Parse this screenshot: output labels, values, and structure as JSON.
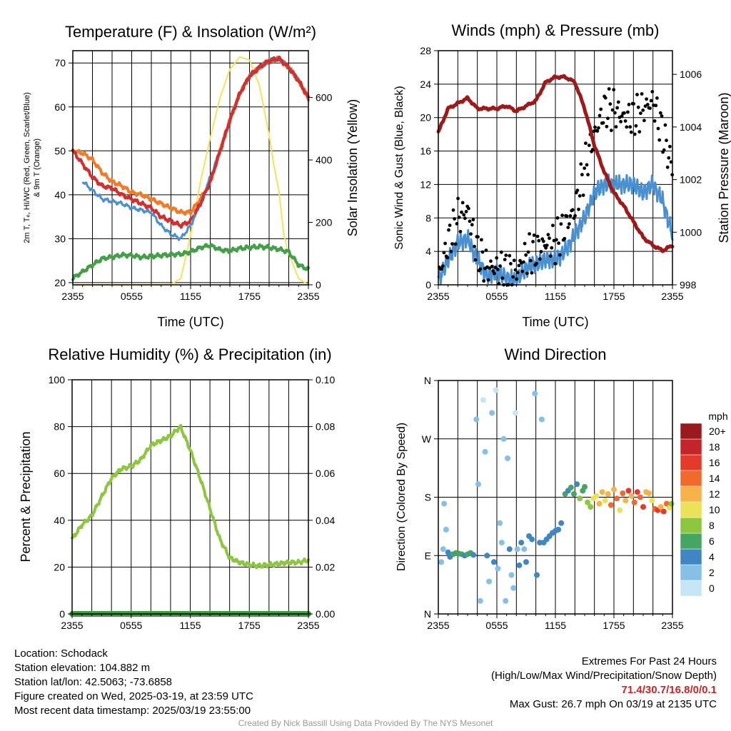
{
  "temp_panel": {
    "title": "Temperature (F) & Insolation (W/m²)",
    "ylabel_line1": "2m T, Tₑ, HI/WC (Red, Green, Scarlet/Blue)",
    "ylabel_line2": "& 9m T (Orange)",
    "ylabel2": "Solar Insolation (Yellow)",
    "xlabel": "Time (UTC)"
  },
  "wind_panel": {
    "title": "Winds (mph) & Pressure (mb)",
    "ylabel": "Sonic Wind & Gust (Blue, Black)",
    "ylabel2": "Station Pressure (Maroon)",
    "xlabel": "Time (UTC)"
  },
  "rh_panel": {
    "title": "Relative Humidity (%) & Precipitation (in)",
    "ylabel": "Percent & Precipitation"
  },
  "dir_panel": {
    "title": "Wind Direction",
    "ylabel": "Direction (Colored By Speed)",
    "colorbar_title": "mph"
  },
  "footer": {
    "location": "Location: Schodack",
    "elevation": "Station elevation: 104.882 m",
    "latlon": "Station lat/lon: 42.5063; -73.6858",
    "created": "Figure created on Wed, 2025-03-19, at 23:59 UTC",
    "recent": "Most recent data timestamp: 2025/03/19 23:55:00",
    "extremes_title": "Extremes For Past 24 Hours",
    "extremes_sub": "(High/Low/Max Wind/Precipitation/Snow Depth)",
    "extremes_values": "71.4/30.7/16.8/0/0.1",
    "max_gust": "Max Gust: 26.7 mph On 03/19 at 2135 UTC",
    "credit": "Created By Nick Bassill Using Data Provided By The NYS Mesonet"
  },
  "colors": {
    "temp": "#d32f2f",
    "dewpoint": "#43a047",
    "temp9m": "#f07c2a",
    "heatindex": "#4a90d0",
    "solar": "#f8e25c",
    "wind": "#4a90d0",
    "gust": "#000000",
    "pressure": "#9e1a1a",
    "rh": "#8dc63f",
    "precip": "#3e9a3e"
  },
  "chart_data": [
    {
      "type": "line",
      "title": "Temperature (F) & Insolation (W/m²)",
      "xlabel": "Time (UTC)",
      "ylabel": "2m T, Tₑ, HI/WC (Red, Green, Scarlet/Blue) & 9m T (Orange)",
      "ylabel2": "Solar Insolation (Yellow)",
      "x_ticks": [
        "2355",
        "0555",
        "1155",
        "1755",
        "2355"
      ],
      "y_ticks": [
        20,
        30,
        40,
        50,
        60,
        70
      ],
      "y2_ticks": [
        0,
        200,
        400,
        600
      ],
      "ylim": [
        19.5,
        72.8
      ],
      "y2lim": [
        0,
        750
      ],
      "x_hours": [
        0,
        1,
        2,
        3,
        4,
        5,
        6,
        7,
        8,
        9,
        10,
        11,
        12,
        13,
        14,
        15,
        16,
        17,
        18,
        19,
        20,
        21,
        22,
        23,
        24
      ],
      "series": [
        {
          "color": "red",
          "values": [
            50,
            47,
            44,
            42,
            41.5,
            40,
            39,
            38,
            37,
            35,
            34,
            33,
            34,
            38,
            43,
            50,
            57,
            63,
            67,
            69,
            70.5,
            71,
            69,
            66,
            62
          ]
        },
        {
          "color": "orange",
          "values": [
            50,
            49.5,
            48,
            45,
            43,
            42,
            40.5,
            40,
            39,
            38,
            37,
            36,
            36,
            39,
            43,
            50,
            57,
            63,
            67,
            69,
            70.5,
            71,
            69,
            66,
            62
          ]
        },
        {
          "color": "green",
          "values": [
            21,
            22.5,
            24,
            25.5,
            25.8,
            26.3,
            26.2,
            25.8,
            26,
            26.2,
            26.4,
            26.5,
            27,
            28,
            28.5,
            27.5,
            27.2,
            27.8,
            28,
            28.2,
            28,
            27.6,
            27,
            24,
            23
          ]
        },
        {
          "color": "scarlet/blue",
          "values": [
            null,
            43,
            41,
            39,
            38.5,
            38,
            37,
            36.5,
            36,
            33,
            31,
            30,
            33,
            38,
            44,
            50,
            57,
            63,
            67,
            69,
            70.5,
            71,
            69,
            66,
            62
          ]
        }
      ],
      "solar_series": {
        "color": "yellow",
        "x_hours": [
          0,
          9,
          10,
          11,
          12,
          13,
          14,
          15,
          16,
          17,
          18,
          19,
          20,
          20.5,
          21,
          21.5,
          22,
          23,
          24
        ],
        "values": [
          0,
          0,
          2,
          20,
          160,
          330,
          470,
          600,
          690,
          730,
          720,
          640,
          480,
          380,
          300,
          160,
          100,
          20,
          0
        ]
      }
    },
    {
      "type": "line",
      "title": "Winds (mph) & Pressure (mb)",
      "xlabel": "Time (UTC)",
      "ylabel": "Sonic Wind & Gust (Blue, Black)",
      "ylabel2": "Station Pressure (Maroon)",
      "x_ticks": [
        "2355",
        "0555",
        "1155",
        "1755",
        "2355"
      ],
      "y_ticks": [
        0,
        4,
        8,
        12,
        16,
        20,
        24,
        28
      ],
      "y2_ticks": [
        998,
        1000,
        1002,
        1004,
        1006
      ],
      "ylim": [
        0,
        28
      ],
      "y2lim": [
        998,
        1006.9
      ],
      "x_hours": [
        0,
        1,
        2,
        3,
        4,
        5,
        6,
        7,
        8,
        9,
        10,
        11,
        12,
        13,
        14,
        15,
        16,
        17,
        18,
        19,
        20,
        21,
        22,
        23,
        24
      ],
      "series": [
        {
          "name": "Sonic Wind",
          "color": "blue",
          "values": [
            0.5,
            3,
            5,
            5.5,
            3,
            1,
            1.5,
            0.8,
            0.5,
            2,
            2.5,
            3,
            3,
            4,
            6,
            8,
            11,
            12,
            12,
            12,
            12,
            11,
            12,
            10,
            6
          ]
        },
        {
          "name": "Gust",
          "color": "black",
          "values": [
            1,
            5,
            8,
            9,
            4,
            2,
            2,
            1.5,
            1.5,
            3.5,
            4,
            5,
            5,
            7,
            9,
            14,
            18,
            21,
            21,
            20,
            20,
            21,
            22,
            18,
            14
          ]
        },
        {
          "name": "Station Pressure",
          "color": "maroon",
          "values": [
            1003.8,
            1004.7,
            1004.9,
            1005.1,
            1004.7,
            1004.7,
            1004.7,
            1004.8,
            1004.6,
            1004.8,
            1005,
            1005.7,
            1005.9,
            1005.9,
            1005.7,
            1004.7,
            1003.3,
            1002.3,
            1001.5,
            1001,
            1000.4,
            999.8,
            999.5,
            999.3,
            999.5
          ]
        }
      ]
    },
    {
      "type": "line",
      "title": "Relative Humidity (%) & Precipitation (in)",
      "ylabel": "Percent & Precipitation",
      "x_ticks": [
        "2355",
        "0555",
        "1155",
        "1755",
        "2355"
      ],
      "y_ticks": [
        0,
        20,
        40,
        60,
        80,
        100
      ],
      "y2_ticks": [
        "0.00",
        "0.02",
        "0.04",
        "0.06",
        "0.08",
        "0.10"
      ],
      "ylim": [
        0,
        100
      ],
      "y2lim": [
        0,
        0.1
      ],
      "x_hours": [
        0,
        1,
        2,
        3,
        4,
        5,
        6,
        7,
        8,
        9,
        10,
        11,
        12,
        13,
        14,
        15,
        16,
        17,
        18,
        19,
        20,
        21,
        22,
        23,
        24
      ],
      "series": [
        {
          "name": "Relative Humidity",
          "color": "light green",
          "values": [
            32,
            38,
            42,
            50,
            58,
            62,
            63,
            66,
            72,
            74,
            76,
            80,
            70,
            58,
            45,
            32,
            24,
            22,
            21,
            20.5,
            21,
            21.5,
            22,
            22,
            23
          ]
        },
        {
          "name": "Precipitation",
          "color": "green",
          "values": [
            0,
            0,
            0,
            0,
            0,
            0,
            0,
            0,
            0,
            0,
            0,
            0,
            0,
            0,
            0,
            0,
            0,
            0,
            0,
            0,
            0,
            0,
            0,
            0,
            0
          ]
        }
      ]
    },
    {
      "type": "scatter",
      "title": "Wind Direction",
      "ylabel": "Direction (Colored By Speed)",
      "x_ticks": [
        "2355",
        "0555",
        "1155",
        "1755",
        "2355"
      ],
      "y_ticks": [
        "N",
        "E",
        "S",
        "W",
        "N"
      ],
      "ylim": [
        0,
        360
      ],
      "colorbar": {
        "title": "mph",
        "labels": [
          "0",
          "2",
          "4",
          "6",
          "8",
          "10",
          "12",
          "14",
          "16",
          "18",
          "20+"
        ]
      },
      "points": [
        {
          "x": 0.3,
          "y": 80,
          "speed": 2
        },
        {
          "x": 0.5,
          "y": 100,
          "speed": 1
        },
        {
          "x": 0.6,
          "y": 170,
          "speed": 1
        },
        {
          "x": 0.8,
          "y": 130,
          "speed": 2
        },
        {
          "x": 1.0,
          "y": 95,
          "speed": 3
        },
        {
          "x": 1.2,
          "y": 88,
          "speed": 4
        },
        {
          "x": 1.5,
          "y": 92,
          "speed": 5
        },
        {
          "x": 1.8,
          "y": 94,
          "speed": 6
        },
        {
          "x": 2.1,
          "y": 93,
          "speed": 6
        },
        {
          "x": 2.4,
          "y": 92,
          "speed": 5
        },
        {
          "x": 2.7,
          "y": 90,
          "speed": 4
        },
        {
          "x": 3.0,
          "y": 92,
          "speed": 6
        },
        {
          "x": 3.3,
          "y": 94,
          "speed": 5
        },
        {
          "x": 3.6,
          "y": 91,
          "speed": 4
        },
        {
          "x": 3.9,
          "y": 300,
          "speed": 1
        },
        {
          "x": 4.1,
          "y": 200,
          "speed": 1
        },
        {
          "x": 4.3,
          "y": 20,
          "speed": 1
        },
        {
          "x": 4.6,
          "y": 330,
          "speed": 0
        },
        {
          "x": 4.8,
          "y": 250,
          "speed": 2
        },
        {
          "x": 5.0,
          "y": 90,
          "speed": 3
        },
        {
          "x": 5.2,
          "y": 50,
          "speed": 2
        },
        {
          "x": 5.5,
          "y": 310,
          "speed": 1
        },
        {
          "x": 5.7,
          "y": 80,
          "speed": 3
        },
        {
          "x": 5.9,
          "y": 345,
          "speed": 0
        },
        {
          "x": 6.1,
          "y": 70,
          "speed": 2
        },
        {
          "x": 6.3,
          "y": 140,
          "speed": 1
        },
        {
          "x": 6.5,
          "y": 110,
          "speed": 2
        },
        {
          "x": 6.7,
          "y": 270,
          "speed": 1
        },
        {
          "x": 6.9,
          "y": 20,
          "speed": 2
        },
        {
          "x": 7.1,
          "y": 240,
          "speed": 1
        },
        {
          "x": 7.3,
          "y": 100,
          "speed": 3
        },
        {
          "x": 7.5,
          "y": 60,
          "speed": 2
        },
        {
          "x": 7.7,
          "y": 40,
          "speed": 1
        },
        {
          "x": 7.9,
          "y": 310,
          "speed": 0
        },
        {
          "x": 8.1,
          "y": 100,
          "speed": 2
        },
        {
          "x": 8.3,
          "y": 75,
          "speed": 4
        },
        {
          "x": 8.5,
          "y": 110,
          "speed": 3
        },
        {
          "x": 8.8,
          "y": 100,
          "speed": 2
        },
        {
          "x": 9.0,
          "y": 80,
          "speed": 3
        },
        {
          "x": 9.3,
          "y": 120,
          "speed": 3
        },
        {
          "x": 9.6,
          "y": 115,
          "speed": 4
        },
        {
          "x": 9.9,
          "y": 340,
          "speed": 1
        },
        {
          "x": 10.1,
          "y": 60,
          "speed": 3
        },
        {
          "x": 10.4,
          "y": 110,
          "speed": 3
        },
        {
          "x": 10.6,
          "y": 300,
          "speed": 1
        },
        {
          "x": 10.8,
          "y": 110,
          "speed": 4
        },
        {
          "x": 11.1,
          "y": 115,
          "speed": 3
        },
        {
          "x": 11.4,
          "y": 120,
          "speed": 4
        },
        {
          "x": 11.7,
          "y": 125,
          "speed": 4
        },
        {
          "x": 12.0,
          "y": 128,
          "speed": 3
        },
        {
          "x": 12.3,
          "y": 130,
          "speed": 4
        },
        {
          "x": 12.6,
          "y": 140,
          "speed": 4
        },
        {
          "x": 13.0,
          "y": 185,
          "speed": 5
        },
        {
          "x": 13.3,
          "y": 190,
          "speed": 4
        },
        {
          "x": 13.6,
          "y": 195,
          "speed": 5
        },
        {
          "x": 13.9,
          "y": 185,
          "speed": 6
        },
        {
          "x": 14.2,
          "y": 200,
          "speed": 4
        },
        {
          "x": 14.5,
          "y": 178,
          "speed": 7
        },
        {
          "x": 14.8,
          "y": 190,
          "speed": 6
        },
        {
          "x": 15.0,
          "y": 196,
          "speed": 5
        },
        {
          "x": 15.3,
          "y": 172,
          "speed": 8
        },
        {
          "x": 15.6,
          "y": 165,
          "speed": 7
        },
        {
          "x": 15.9,
          "y": 178,
          "speed": 9
        },
        {
          "x": 16.2,
          "y": 182,
          "speed": 10
        },
        {
          "x": 16.5,
          "y": 170,
          "speed": 11
        },
        {
          "x": 16.8,
          "y": 188,
          "speed": 12
        },
        {
          "x": 17.1,
          "y": 175,
          "speed": 9
        },
        {
          "x": 17.4,
          "y": 185,
          "speed": 11
        },
        {
          "x": 17.7,
          "y": 168,
          "speed": 13
        },
        {
          "x": 18.0,
          "y": 192,
          "speed": 12
        },
        {
          "x": 18.3,
          "y": 178,
          "speed": 14
        },
        {
          "x": 18.6,
          "y": 160,
          "speed": 10
        },
        {
          "x": 18.9,
          "y": 186,
          "speed": 13
        },
        {
          "x": 19.2,
          "y": 175,
          "speed": 11
        },
        {
          "x": 19.5,
          "y": 190,
          "speed": 15
        },
        {
          "x": 19.8,
          "y": 182,
          "speed": 12
        },
        {
          "x": 20.1,
          "y": 172,
          "speed": 14
        },
        {
          "x": 20.4,
          "y": 188,
          "speed": 16
        },
        {
          "x": 20.7,
          "y": 180,
          "speed": 13
        },
        {
          "x": 21.0,
          "y": 165,
          "speed": 15
        },
        {
          "x": 21.3,
          "y": 188,
          "speed": 12
        },
        {
          "x": 21.6,
          "y": 186,
          "speed": 11
        },
        {
          "x": 21.9,
          "y": 175,
          "speed": 9
        },
        {
          "x": 22.2,
          "y": 162,
          "speed": 14
        },
        {
          "x": 22.5,
          "y": 160,
          "speed": 16
        },
        {
          "x": 22.8,
          "y": 165,
          "speed": 12
        },
        {
          "x": 23.1,
          "y": 158,
          "speed": 15
        },
        {
          "x": 23.4,
          "y": 170,
          "speed": 13
        },
        {
          "x": 23.7,
          "y": 164,
          "speed": 10
        },
        {
          "x": 23.9,
          "y": 170,
          "speed": 7
        }
      ]
    }
  ]
}
